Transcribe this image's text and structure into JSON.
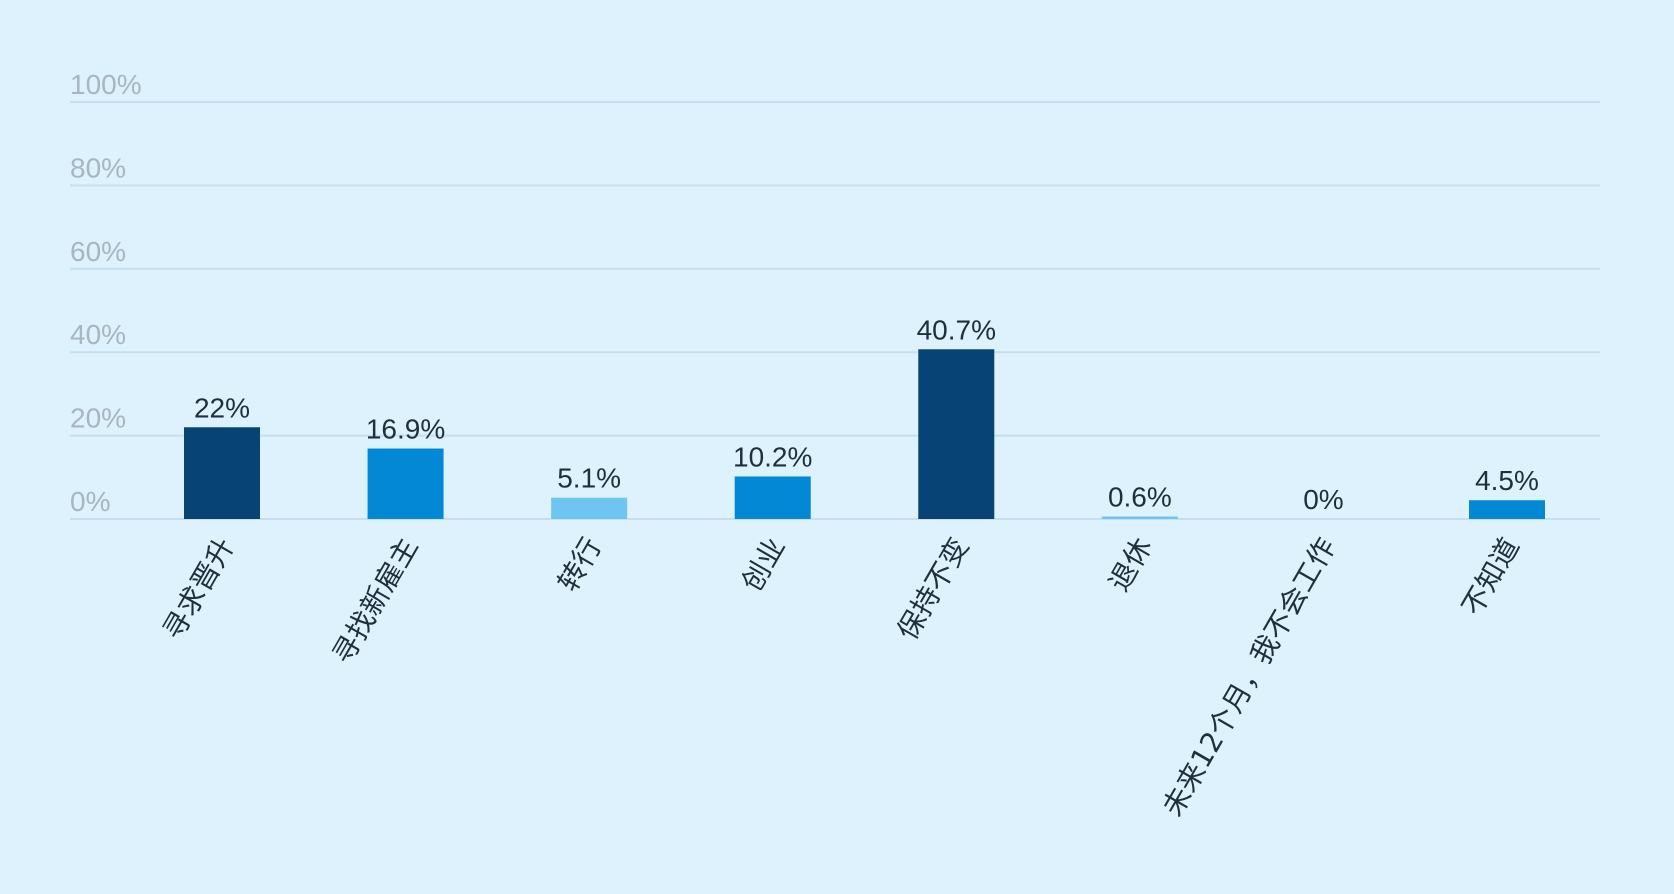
{
  "chart_data": {
    "type": "bar",
    "categories": [
      "寻求晋升",
      "寻找新雇主",
      "转行",
      "创业",
      "保持不变",
      "退休",
      "未来12个月，我不会工作",
      "不知道"
    ],
    "values": [
      22,
      16.9,
      5.1,
      10.2,
      40.7,
      0.6,
      0,
      4.5
    ],
    "value_labels": [
      "22%",
      "16.9%",
      "5.1%",
      "10.2%",
      "40.7%",
      "0.6%",
      "0%",
      "4.5%"
    ],
    "bar_colors": [
      "#074475",
      "#0288d4",
      "#6ec5f2",
      "#0288d4",
      "#074475",
      "#6ec5f2",
      "#0288d4",
      "#0288d4"
    ],
    "ylim": [
      0,
      100
    ],
    "yticks": [
      0,
      20,
      40,
      60,
      80,
      100
    ],
    "ytick_labels": [
      "0%",
      "20%",
      "40%",
      "60%",
      "80%",
      "100%"
    ],
    "grid": true,
    "title": "",
    "xlabel": "",
    "ylabel": ""
  },
  "colors": {
    "background": "#ddf2fc",
    "grid": "#c5dff0",
    "tick_text": "#a9b5bf",
    "label_text": "#1f2f3e"
  }
}
